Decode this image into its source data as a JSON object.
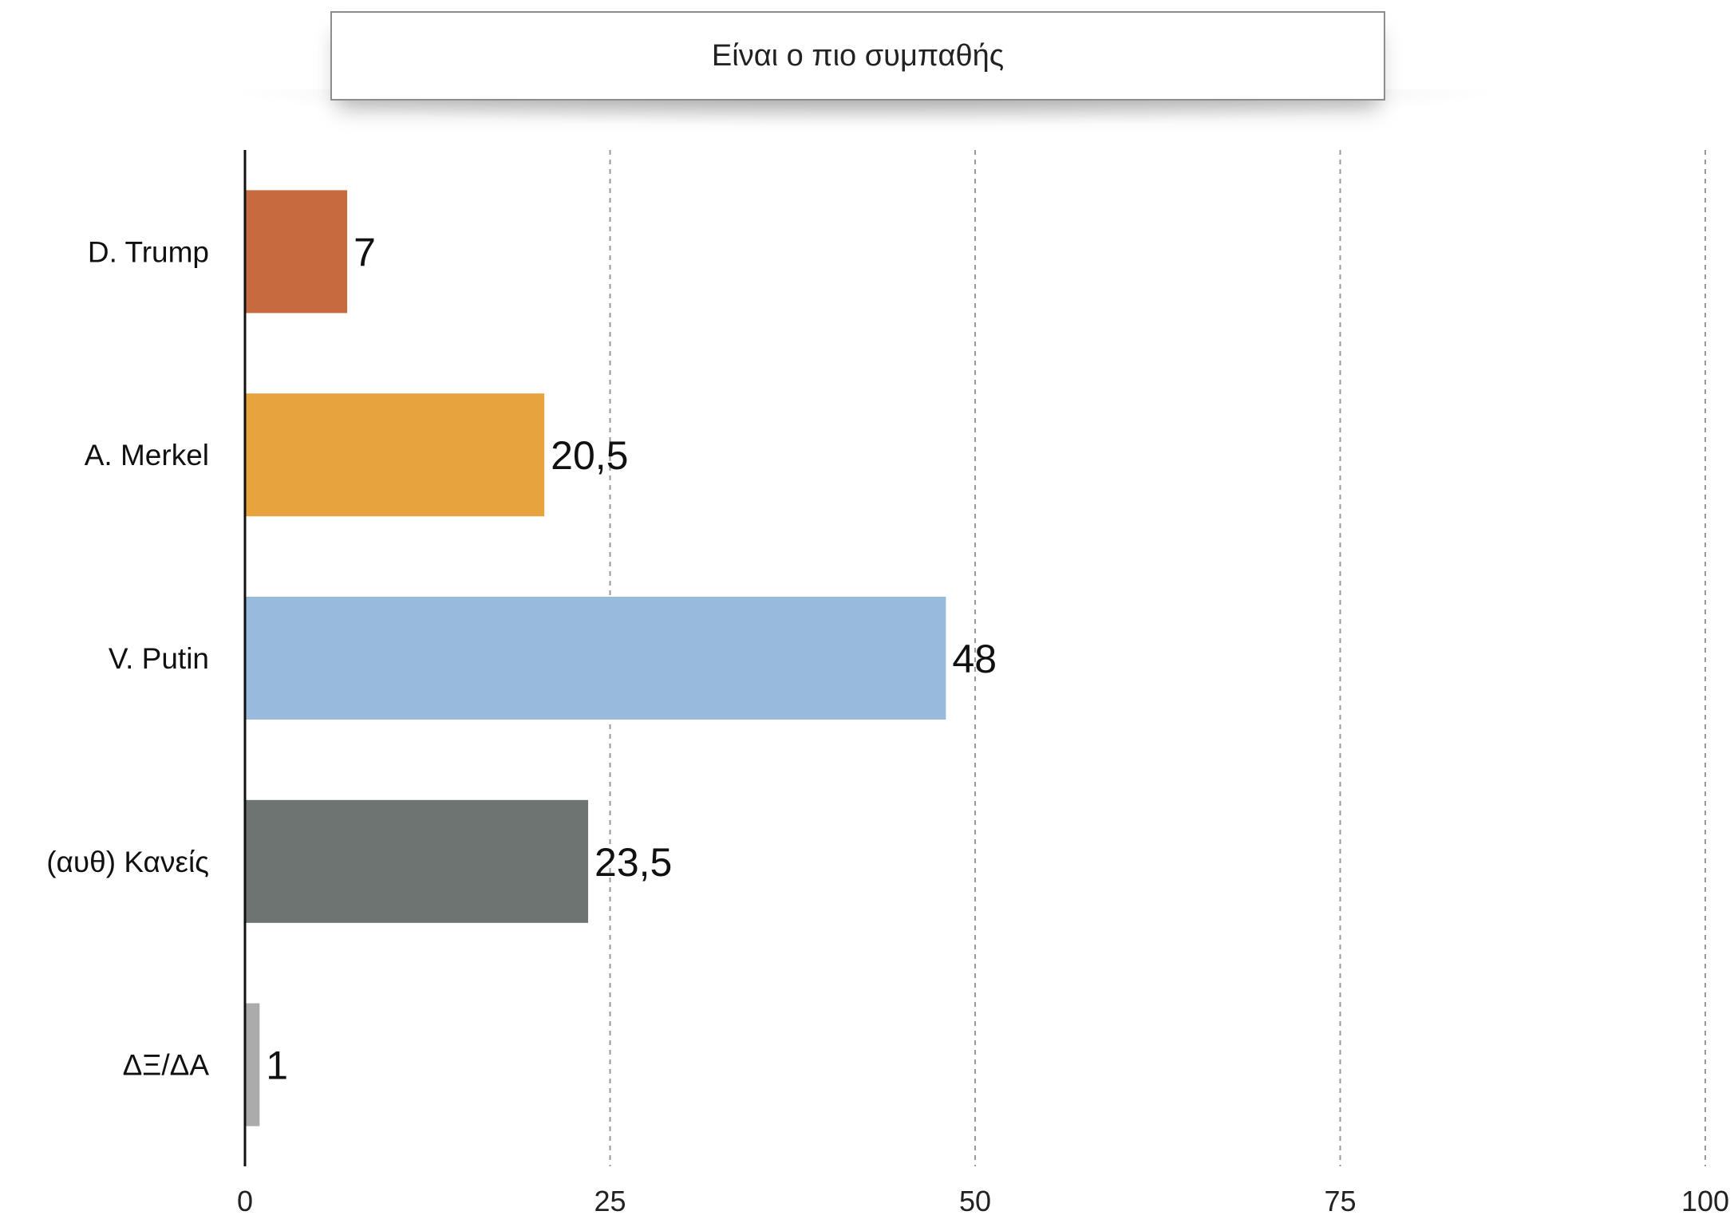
{
  "chart_data": {
    "type": "bar",
    "orientation": "horizontal",
    "title": "Είναι ο πιο συμπαθής",
    "categories": [
      "D. Trump",
      "A. Merkel",
      "V. Putin",
      "(αυθ) Κανείς",
      "ΔΞ/ΔΑ"
    ],
    "values": [
      7,
      20.5,
      48,
      23.5,
      1
    ],
    "value_labels": [
      "7",
      "20,5",
      "48",
      "23,5",
      "1"
    ],
    "colors": [
      "#c66a40",
      "#e7a33d",
      "#98bbdc",
      "#6e7471",
      "#ababab"
    ],
    "xlim": [
      0,
      100
    ],
    "xticks": [
      0,
      25,
      50,
      75,
      100
    ],
    "xtick_labels": [
      "0",
      "25",
      "50",
      "75",
      "100"
    ],
    "grid": "vertical-dashed",
    "xlabel": "",
    "ylabel": ""
  }
}
